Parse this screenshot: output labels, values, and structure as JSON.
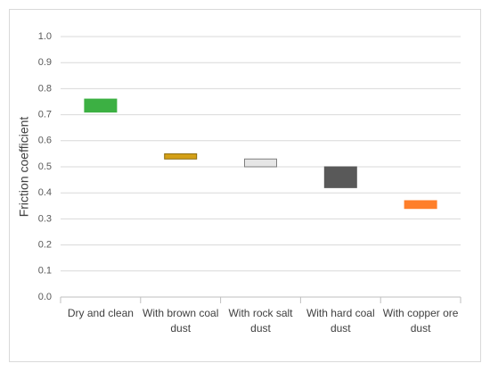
{
  "chart_data": {
    "type": "floating-bar",
    "y_label": "Friction coefficient",
    "categories": [
      "Dry and clean",
      "With brown coal dust",
      "With rock salt dust",
      "With hard coal dust",
      "With copper ore dust"
    ],
    "low": [
      0.71,
      0.53,
      0.5,
      0.42,
      0.34
    ],
    "high": [
      0.76,
      0.55,
      0.53,
      0.5,
      0.37
    ],
    "colors": [
      "#3cb043",
      "#d4a017",
      "#e6e6e6",
      "#595959",
      "#ff7f2a"
    ],
    "edgecolors": [
      "#3cb043",
      "#8c6d0f",
      "#7f7f7f",
      "#595959",
      "#ff7f2a"
    ],
    "ylim": [
      0,
      1
    ],
    "yticks": [
      {
        "value": 0,
        "label": "0.0"
      },
      0.1,
      0.2,
      0.3,
      0.4,
      0.5,
      0.6,
      0.7,
      0.8,
      0.9,
      {
        "value": 1,
        "label": "1.0"
      }
    ],
    "grid": true
  }
}
